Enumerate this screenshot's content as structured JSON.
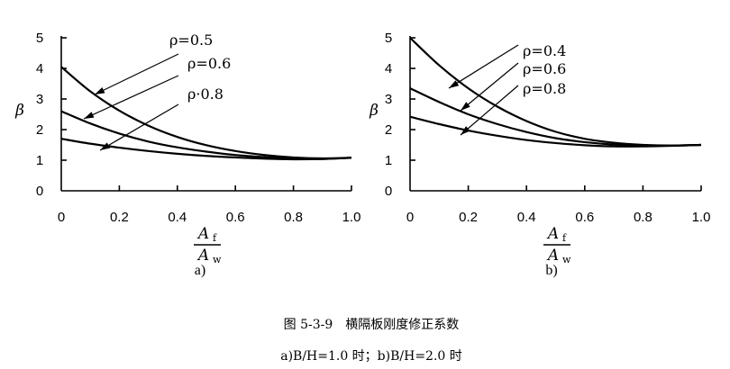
{
  "chart_data": [
    {
      "type": "line",
      "panel_label": "a)",
      "xlabel": {
        "numerator": "A",
        "numerator_sub": "f",
        "denominator": "A",
        "denominator_sub": "w"
      },
      "ylabel": "β",
      "xlim": [
        0,
        1.0
      ],
      "ylim": [
        0,
        5
      ],
      "x_ticks": [
        "0",
        "0.2",
        "0.4",
        "0.6",
        "0.8",
        "1.0"
      ],
      "y_ticks": [
        "0",
        "1",
        "2",
        "3",
        "4",
        "5"
      ],
      "x": [
        0,
        0.1,
        0.2,
        0.3,
        0.4,
        0.5,
        0.6,
        0.7,
        0.8,
        0.9,
        1.0
      ],
      "series": [
        {
          "name": "ρ=0.5",
          "values": [
            4.05,
            3.25,
            2.62,
            2.13,
            1.76,
            1.49,
            1.3,
            1.17,
            1.09,
            1.06,
            1.08
          ]
        },
        {
          "name": "ρ=0.6",
          "values": [
            2.6,
            2.2,
            1.87,
            1.61,
            1.42,
            1.28,
            1.17,
            1.1,
            1.05,
            1.04,
            1.08
          ]
        },
        {
          "name": "ρ·0.8",
          "values": [
            1.7,
            1.54,
            1.41,
            1.3,
            1.21,
            1.14,
            1.09,
            1.05,
            1.03,
            1.04,
            1.08
          ]
        }
      ]
    },
    {
      "type": "line",
      "panel_label": "b)",
      "xlabel": {
        "numerator": "A",
        "numerator_sub": "f",
        "denominator": "A",
        "denominator_sub": "w"
      },
      "ylabel": "β",
      "xlim": [
        0,
        1.0
      ],
      "ylim": [
        0,
        5
      ],
      "x_ticks": [
        "0",
        "0.2",
        "0.4",
        "0.6",
        "0.8",
        "1.0"
      ],
      "y_ticks": [
        "0",
        "1",
        "2",
        "3",
        "4",
        "5"
      ],
      "x": [
        0,
        0.1,
        0.2,
        0.3,
        0.4,
        0.5,
        0.6,
        0.7,
        0.8,
        0.9,
        1.0
      ],
      "series": [
        {
          "name": "ρ=0.4",
          "values": [
            5.0,
            4.1,
            3.35,
            2.75,
            2.28,
            1.93,
            1.7,
            1.57,
            1.5,
            1.48,
            1.5
          ]
        },
        {
          "name": "ρ=0.6",
          "values": [
            3.35,
            2.9,
            2.5,
            2.18,
            1.92,
            1.72,
            1.59,
            1.51,
            1.48,
            1.48,
            1.5
          ]
        },
        {
          "name": "ρ=0.8",
          "values": [
            2.42,
            2.18,
            1.97,
            1.8,
            1.66,
            1.56,
            1.49,
            1.45,
            1.45,
            1.47,
            1.5
          ]
        }
      ]
    }
  ],
  "caption": {
    "title": "图 5-3-9　横隔板刚度修正系数",
    "subtitle": "a)B/H=1.0 时；b)B/H=2.0 时"
  }
}
